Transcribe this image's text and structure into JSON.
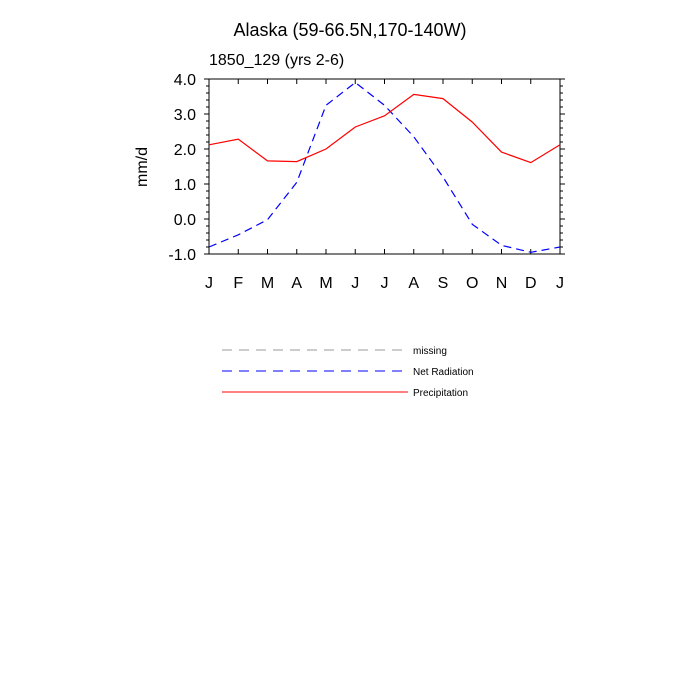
{
  "chart_data": {
    "type": "line",
    "title": "Alaska (59-66.5N,170-140W)",
    "subtitle": "1850_129 (yrs 2-6)",
    "xlabel": "",
    "ylabel": "mm/d",
    "categories": [
      "J",
      "F",
      "M",
      "A",
      "M",
      "J",
      "J",
      "A",
      "S",
      "O",
      "N",
      "D",
      "J"
    ],
    "ylim": [
      -1.0,
      4.0
    ],
    "yticks": [
      "-1.0",
      "0.0",
      "1.0",
      "2.0",
      "3.0",
      "4.0"
    ],
    "grid": false,
    "legend_position": "below",
    "series": [
      {
        "name": "Net Radiation",
        "color": "#0000ff",
        "dash": "dashed",
        "values": [
          -0.8,
          -0.45,
          -0.02,
          1.05,
          3.25,
          3.9,
          3.25,
          2.35,
          1.2,
          -0.15,
          -0.75,
          -0.95,
          -0.8
        ]
      },
      {
        "name": "Precipitation",
        "color": "#ff0000",
        "dash": "solid",
        "values": [
          2.12,
          2.28,
          1.66,
          1.64,
          2.0,
          2.63,
          2.95,
          3.56,
          3.44,
          2.77,
          1.91,
          1.61,
          2.12
        ]
      }
    ],
    "legend": [
      {
        "name": "missing",
        "color": "#999999",
        "dash": "dashed"
      },
      {
        "name": "Net Radiation",
        "color": "#0000ff",
        "dash": "dashed"
      },
      {
        "name": "Precipitation",
        "color": "#ff0000",
        "dash": "solid"
      }
    ]
  }
}
